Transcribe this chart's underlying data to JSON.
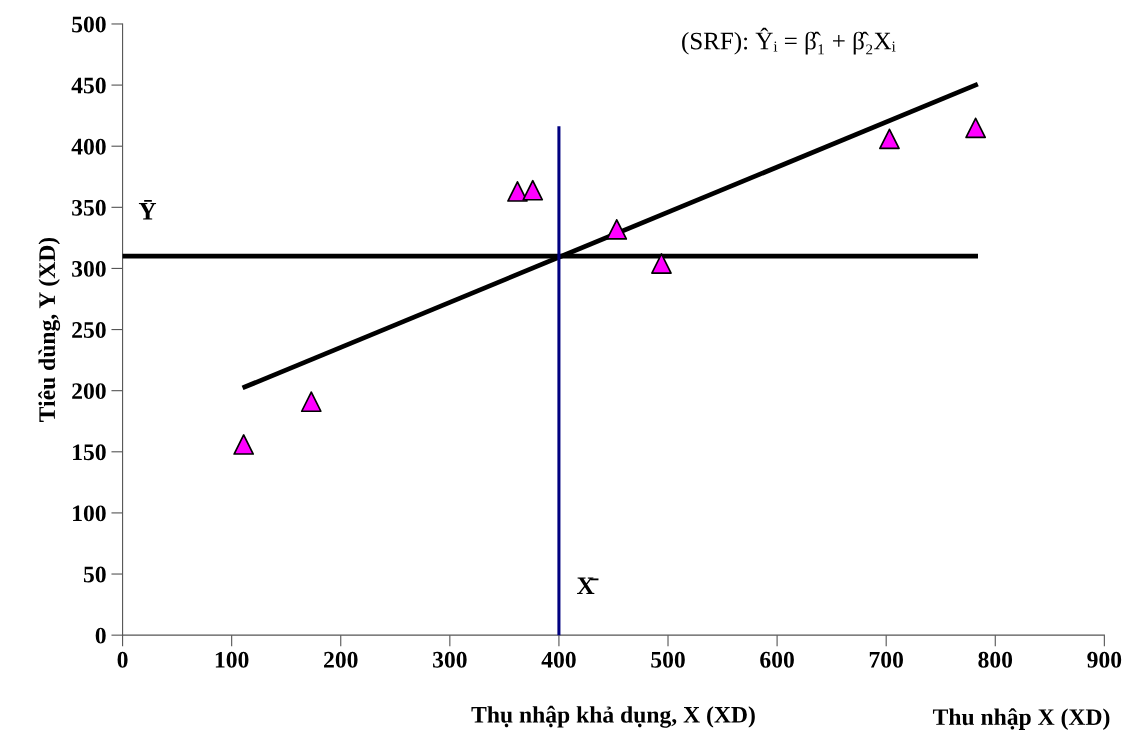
{
  "chart_data": {
    "type": "scatter",
    "xlabel": "Thụ nhập khả dụng, X (XD)",
    "ylabel": "Tiêu dùng, Y (XD)",
    "xlim": [
      0,
      900
    ],
    "xticks": [
      0,
      100,
      200,
      300,
      400,
      500,
      600,
      700,
      800,
      900
    ],
    "ylim": [
      0,
      500
    ],
    "yticks": [
      0,
      50,
      100,
      150,
      200,
      250,
      300,
      350,
      400,
      450,
      500
    ],
    "grid": false,
    "legend": false,
    "series": [
      {
        "color": "#ff00ff",
        "marker": "triangle",
        "x": [
          111,
          173,
          362,
          376,
          453,
          494,
          703,
          782
        ],
        "values": [
          156,
          191,
          363,
          364,
          332,
          304,
          406,
          415
        ]
      },
      {
        "type": "line",
        "color": "#000000",
        "marker": "none",
        "line_style": "solid",
        "x": [
          112,
          782
        ],
        "values": [
          203,
          450
        ]
      },
      {
        "type": "line",
        "color": "#000000",
        "marker": "none",
        "line_style": "solid",
        "x": [
          0,
          782
        ],
        "values": [
          310,
          310
        ]
      },
      {
        "type": "line",
        "color": "#000080",
        "marker": "none",
        "line_style": "solid",
        "x": [
          400,
          400
        ],
        "values": [
          0,
          415
        ]
      }
    ],
    "annotations": [
      "(SRF): Ŷᵢ = β̂₁ + β̂₂Xᵢ",
      "Thu nhập X (XD)",
      "Ȳ",
      "X̄"
    ]
  }
}
